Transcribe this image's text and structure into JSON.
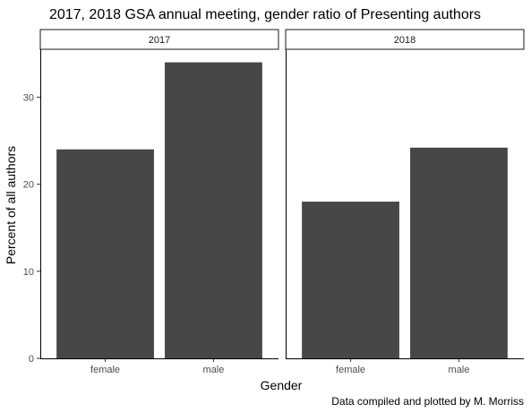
{
  "chart_data": {
    "type": "bar",
    "title": "2017, 2018 GSA annual meeting, gender ratio of Presenting authors",
    "xlabel": "Gender",
    "ylabel": "Percent of all authors",
    "caption": "Data compiled and plotted by M. Morriss",
    "ylim": [
      0,
      35.5
    ],
    "yticks": [
      0,
      10,
      20,
      30
    ],
    "grid": false,
    "bar_color": "#474747",
    "categories": [
      "female",
      "male"
    ],
    "panels": [
      {
        "label": "2017",
        "values": [
          24,
          34
        ]
      },
      {
        "label": "2018",
        "values": [
          18,
          24.2
        ]
      }
    ]
  }
}
